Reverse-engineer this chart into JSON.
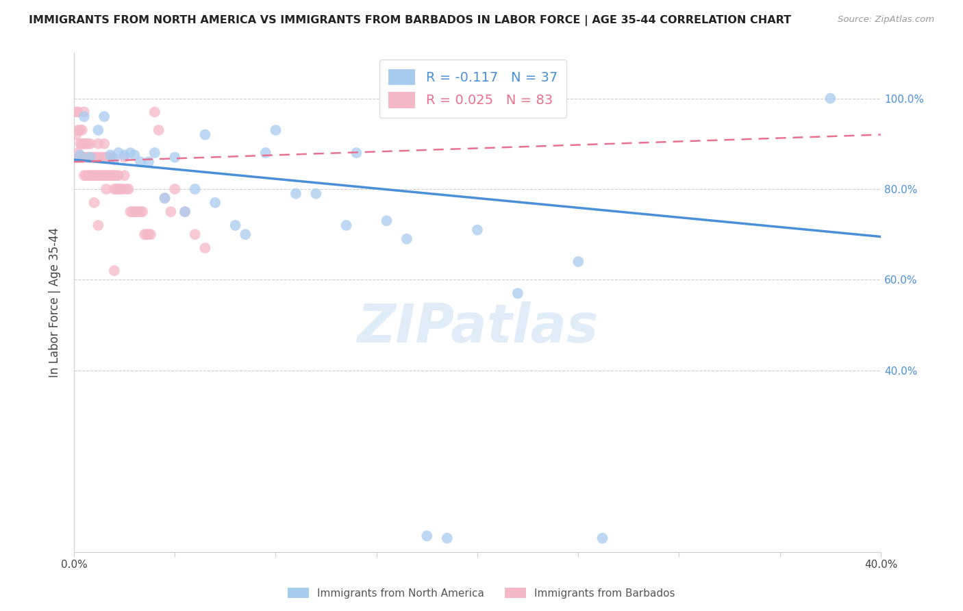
{
  "title": "IMMIGRANTS FROM NORTH AMERICA VS IMMIGRANTS FROM BARBADOS IN LABOR FORCE | AGE 35-44 CORRELATION CHART",
  "source": "Source: ZipAtlas.com",
  "ylabel": "In Labor Force | Age 35-44",
  "xlim": [
    0.0,
    0.4
  ],
  "ylim": [
    0.0,
    1.1
  ],
  "ytick_vals": [
    0.4,
    0.6,
    0.8,
    1.0
  ],
  "ytick_labels": [
    "40.0%",
    "60.0%",
    "80.0%",
    "100.0%"
  ],
  "xtick_vals": [
    0.0,
    0.05,
    0.1,
    0.15,
    0.2,
    0.25,
    0.3,
    0.35,
    0.4
  ],
  "xtick_labels": [
    "0.0%",
    "",
    "",
    "",
    "",
    "",
    "",
    "",
    "40.0%"
  ],
  "r_north_america": -0.117,
  "n_north_america": 37,
  "r_barbados": 0.025,
  "n_barbados": 83,
  "color_north_america": "#A8CCF0",
  "color_barbados": "#F5B8C8",
  "trendline_color_na": "#4A90D9",
  "trendline_color_bb": "#E87090",
  "watermark": "ZIPatlas",
  "na_trendline_x0": 0.0,
  "na_trendline_y0": 0.865,
  "na_trendline_x1": 0.4,
  "na_trendline_y1": 0.695,
  "bb_trendline_x0": 0.0,
  "bb_trendline_y0": 0.86,
  "bb_trendline_x1": 0.4,
  "bb_trendline_y1": 0.92,
  "north_america_x": [
    0.003,
    0.005,
    0.008,
    0.012,
    0.015,
    0.018,
    0.02,
    0.022,
    0.025,
    0.028,
    0.03,
    0.033,
    0.037,
    0.04,
    0.045,
    0.05,
    0.055,
    0.06,
    0.065,
    0.07,
    0.08,
    0.085,
    0.095,
    0.1,
    0.11,
    0.12,
    0.135,
    0.14,
    0.155,
    0.165,
    0.175,
    0.185,
    0.2,
    0.22,
    0.25,
    0.262,
    0.375
  ],
  "north_america_y": [
    0.875,
    0.96,
    0.87,
    0.93,
    0.96,
    0.875,
    0.865,
    0.88,
    0.875,
    0.88,
    0.875,
    0.86,
    0.86,
    0.88,
    0.78,
    0.87,
    0.75,
    0.8,
    0.92,
    0.77,
    0.72,
    0.7,
    0.88,
    0.93,
    0.79,
    0.79,
    0.72,
    0.88,
    0.73,
    0.69,
    0.035,
    0.03,
    0.71,
    0.57,
    0.64,
    0.03,
    1.0
  ],
  "barbados_x": [
    0.001,
    0.001,
    0.002,
    0.002,
    0.002,
    0.003,
    0.003,
    0.003,
    0.004,
    0.004,
    0.004,
    0.005,
    0.005,
    0.005,
    0.005,
    0.006,
    0.006,
    0.006,
    0.007,
    0.007,
    0.007,
    0.008,
    0.008,
    0.008,
    0.009,
    0.009,
    0.01,
    0.01,
    0.011,
    0.011,
    0.012,
    0.012,
    0.012,
    0.013,
    0.013,
    0.014,
    0.014,
    0.015,
    0.015,
    0.015,
    0.016,
    0.016,
    0.017,
    0.017,
    0.018,
    0.018,
    0.019,
    0.019,
    0.02,
    0.02,
    0.021,
    0.021,
    0.022,
    0.022,
    0.023,
    0.024,
    0.025,
    0.025,
    0.026,
    0.027,
    0.028,
    0.029,
    0.03,
    0.031,
    0.032,
    0.033,
    0.034,
    0.035,
    0.036,
    0.037,
    0.038,
    0.04,
    0.042,
    0.045,
    0.048,
    0.05,
    0.055,
    0.06,
    0.065,
    0.01,
    0.012,
    0.016,
    0.02
  ],
  "barbados_y": [
    0.97,
    0.92,
    0.88,
    0.93,
    0.97,
    0.87,
    0.9,
    0.93,
    0.87,
    0.9,
    0.93,
    0.83,
    0.87,
    0.9,
    0.97,
    0.83,
    0.87,
    0.9,
    0.83,
    0.87,
    0.9,
    0.83,
    0.87,
    0.9,
    0.83,
    0.87,
    0.83,
    0.87,
    0.83,
    0.87,
    0.83,
    0.87,
    0.9,
    0.83,
    0.87,
    0.83,
    0.87,
    0.83,
    0.87,
    0.9,
    0.83,
    0.87,
    0.83,
    0.87,
    0.83,
    0.87,
    0.83,
    0.87,
    0.8,
    0.83,
    0.8,
    0.83,
    0.8,
    0.83,
    0.8,
    0.8,
    0.83,
    0.87,
    0.8,
    0.8,
    0.75,
    0.75,
    0.75,
    0.75,
    0.75,
    0.75,
    0.75,
    0.7,
    0.7,
    0.7,
    0.7,
    0.97,
    0.93,
    0.78,
    0.75,
    0.8,
    0.75,
    0.7,
    0.67,
    0.77,
    0.72,
    0.8,
    0.62
  ]
}
